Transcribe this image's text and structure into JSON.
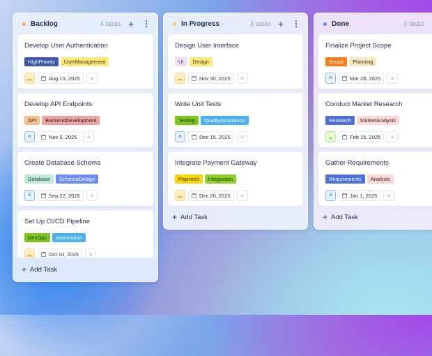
{
  "columns": [
    {
      "name": "Backlog",
      "count": "4 tasks",
      "dot": "#f5a54a",
      "add_label": "Add Task",
      "cards": [
        {
          "title": "Develop User Authentication",
          "tags": [
            {
              "label": "HighPriority",
              "bg": "#3d5aa8",
              "fg": "#ffffff"
            },
            {
              "label": "UserManagement",
              "bg": "#fde97a",
              "fg": "#3a3a20"
            }
          ],
          "priority": "high",
          "date": "Aug 15, 2025"
        },
        {
          "title": "Develop API Endpoints",
          "tags": [
            {
              "label": "API",
              "bg": "#f8bf8a",
              "fg": "#3a2a20"
            },
            {
              "label": "BackendDevelopment",
              "bg": "#eea4a4",
              "fg": "#3a2020"
            }
          ],
          "priority": "medium",
          "date": "Nov 5, 2025"
        },
        {
          "title": "Create Database Schema",
          "tags": [
            {
              "label": "Database",
              "bg": "#bfeadf",
              "fg": "#2b3f3a"
            },
            {
              "label": "SchemaDesign",
              "bg": "#6d8df0",
              "fg": "#ffffff"
            }
          ],
          "priority": "medium",
          "date": "Sep 22, 2025"
        },
        {
          "title": "Set Up CI/CD Pipeline",
          "tags": [
            {
              "label": "DevOps",
              "bg": "#7cc51c",
              "fg": "#1f3a10"
            },
            {
              "label": "Automation",
              "bg": "#4ab0f2",
              "fg": "#ffffff"
            }
          ],
          "priority": "high",
          "date": "Oct 10, 2025"
        }
      ]
    },
    {
      "name": "In Progress",
      "count": "3 tasks",
      "dot": "#f8cf5a",
      "add_label": "Add Task",
      "cards": [
        {
          "title": "Design User Interface",
          "tags": [
            {
              "label": "UI",
              "bg": "#efdff5",
              "fg": "#4a3a55"
            },
            {
              "label": "Design",
              "bg": "#fde97a",
              "fg": "#3a3a20"
            }
          ],
          "priority": "high",
          "date": "Nov 30, 2025"
        },
        {
          "title": "Write Unit Tests",
          "tags": [
            {
              "label": "Testing",
              "bg": "#7cc51c",
              "fg": "#1f3a10"
            },
            {
              "label": "QualityAssurance",
              "bg": "#4ab0f2",
              "fg": "#ffffff"
            }
          ],
          "priority": "medium",
          "date": "Dec 15, 2025"
        },
        {
          "title": "Integrate Payment Gateway",
          "tags": [
            {
              "label": "Payment",
              "bg": "#fbd500",
              "fg": "#3a3210"
            },
            {
              "label": "Integration",
              "bg": "#8ccf2a",
              "fg": "#1f3a10"
            }
          ],
          "priority": "high",
          "date": "Dec 20, 2025"
        }
      ]
    },
    {
      "name": "Done",
      "count": "3 tasks",
      "dot": "#5a86f0",
      "add_label": "Add Task",
      "cards": [
        {
          "title": "Finalize Project Scope",
          "tags": [
            {
              "label": "Scope",
              "bg": "#fb7a1c",
              "fg": "#ffffff"
            },
            {
              "label": "Planning",
              "bg": "#fde7c0",
              "fg": "#3a3020"
            }
          ],
          "priority": "medium",
          "date": "Mar 28, 2025"
        },
        {
          "title": "Conduct Market Research",
          "tags": [
            {
              "label": "Research",
              "bg": "#4d70d6",
              "fg": "#ffffff"
            },
            {
              "label": "MarketAnalysis",
              "bg": "#fbd8d8",
              "fg": "#3a2020"
            }
          ],
          "priority": "low",
          "date": "Feb 15, 2025"
        },
        {
          "title": "Gather Requirements",
          "tags": [
            {
              "label": "Requirements",
              "bg": "#4d70d6",
              "fg": "#ffffff"
            },
            {
              "label": "Analysis",
              "bg": "#fbd8d8",
              "fg": "#3a2020"
            }
          ],
          "priority": "medium",
          "date": "Jan 1, 2025"
        }
      ]
    }
  ],
  "priority_styles": {
    "high": {
      "icon": "double-chevron-up-icon",
      "glyph": "︽",
      "bg": "#fdf0c8",
      "fg": "#f0a020",
      "border": "#f8d888"
    },
    "medium": {
      "icon": "chevron-up-icon",
      "glyph": "^",
      "bg": "#e8f2fd",
      "fg": "#2f7ee0",
      "border": "#8fbcf0"
    },
    "low": {
      "icon": "chevron-down-icon",
      "glyph": "⌄",
      "bg": "#e6f9cf",
      "fg": "#5aa020",
      "border": "#b8e890"
    }
  }
}
